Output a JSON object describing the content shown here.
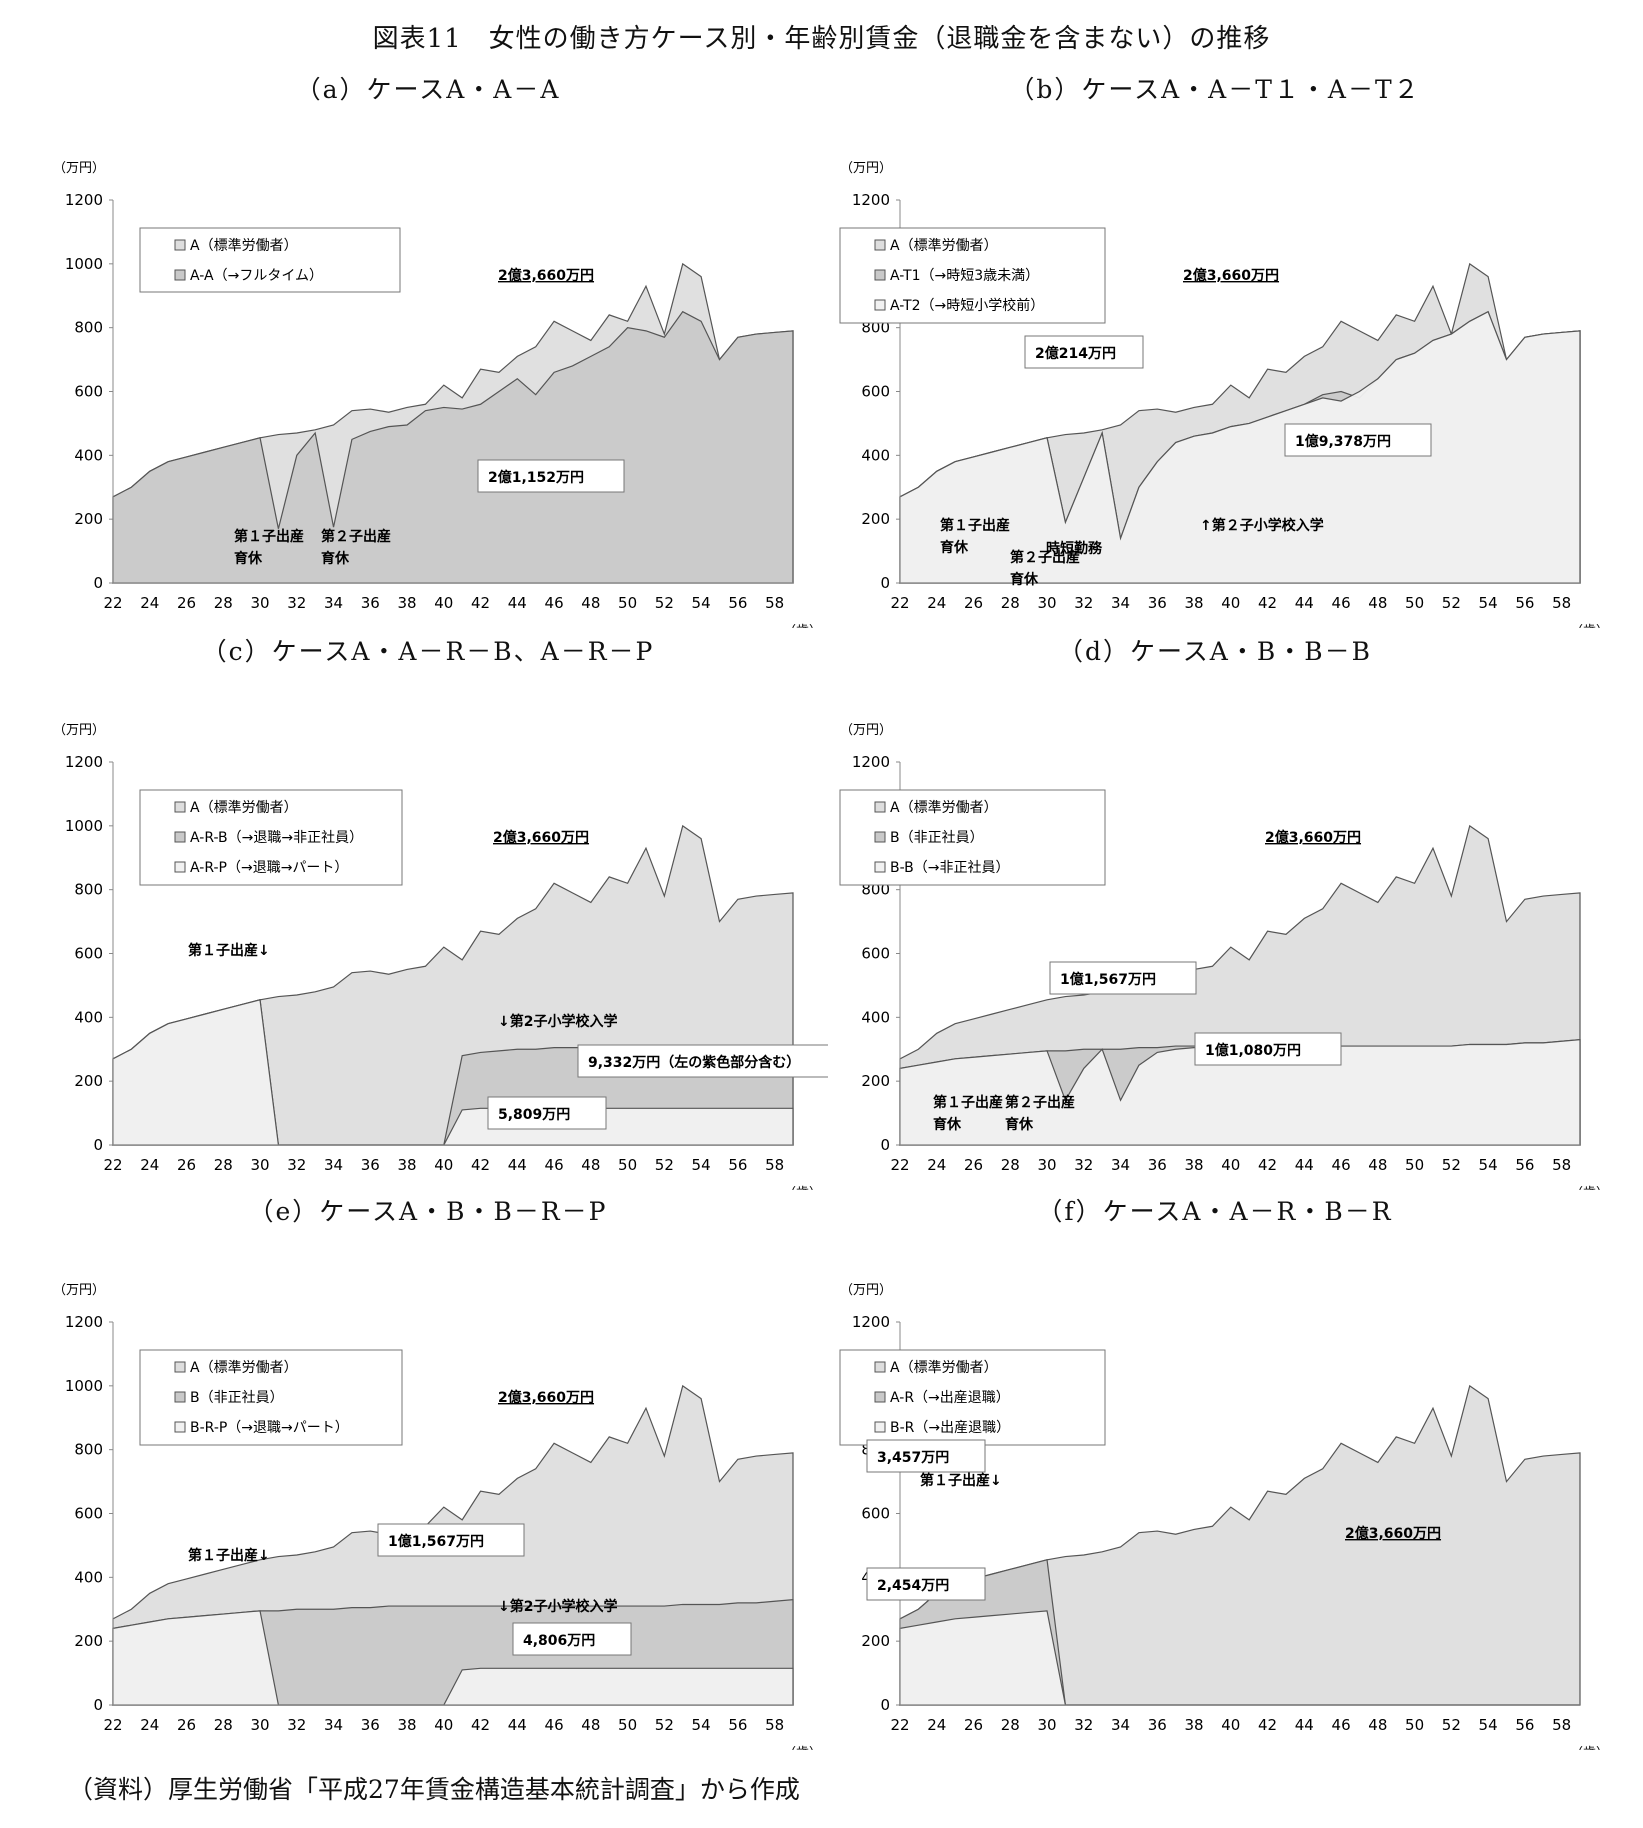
{
  "title": "図表11　女性の働き方ケース別・年齢別賃金（退職金を含まない）の推移",
  "source": "（資料）厚生労働省「平成27年賃金構造基本統計調査」から作成",
  "colors": {
    "area_light": "#f1f1f1",
    "area_mid": "#dedede",
    "area_dark": "#c9c9c9",
    "line": "#555555",
    "frame": "#777777"
  },
  "chart_data": [
    {
      "id": "a",
      "type": "area",
      "title": "（a）ケースA・A－A",
      "unit_label": "（万円）",
      "x_unit_label": "（歳）",
      "x": [
        22,
        23,
        24,
        25,
        26,
        27,
        28,
        29,
        30,
        31,
        32,
        33,
        34,
        35,
        36,
        37,
        38,
        39,
        40,
        41,
        42,
        43,
        44,
        45,
        46,
        47,
        48,
        49,
        50,
        51,
        52,
        53,
        54,
        55,
        56,
        57,
        58,
        59
      ],
      "ylim": [
        0,
        1200
      ],
      "yticks": [
        0,
        200,
        400,
        600,
        800,
        1000,
        1200
      ],
      "xticks": [
        22,
        24,
        26,
        28,
        30,
        32,
        34,
        36,
        38,
        40,
        42,
        44,
        46,
        48,
        50,
        52,
        54,
        56,
        58
      ],
      "series": [
        {
          "name": "A（標準労働者）",
          "values": [
            270,
            300,
            350,
            380,
            395,
            410,
            425,
            440,
            455,
            465,
            470,
            480,
            495,
            540,
            545,
            535,
            550,
            560,
            620,
            580,
            670,
            660,
            710,
            740,
            820,
            790,
            760,
            840,
            820,
            930,
            780,
            1000,
            960,
            700,
            770,
            780,
            785,
            790
          ]
        },
        {
          "name": "A-A（→フルタイム）",
          "values": [
            270,
            300,
            350,
            380,
            395,
            410,
            425,
            440,
            455,
            170,
            400,
            470,
            175,
            450,
            475,
            490,
            495,
            540,
            550,
            545,
            560,
            600,
            640,
            590,
            660,
            680,
            710,
            740,
            800,
            790,
            770,
            850,
            820,
            700,
            770,
            780,
            785,
            790
          ]
        }
      ],
      "annotations": [
        "2億3,660万円",
        "2億1,152万円",
        "第１子出産",
        "育休",
        "第２子出産",
        "育休"
      ]
    },
    {
      "id": "b",
      "type": "area",
      "title": "（b）ケースA・A－T１・A－T２",
      "unit_label": "（万円）",
      "x_unit_label": "（歳）",
      "x": [
        22,
        23,
        24,
        25,
        26,
        27,
        28,
        29,
        30,
        31,
        32,
        33,
        34,
        35,
        36,
        37,
        38,
        39,
        40,
        41,
        42,
        43,
        44,
        45,
        46,
        47,
        48,
        49,
        50,
        51,
        52,
        53,
        54,
        55,
        56,
        57,
        58,
        59
      ],
      "ylim": [
        0,
        1200
      ],
      "yticks": [
        0,
        200,
        400,
        600,
        800,
        1000,
        1200
      ],
      "xticks": [
        22,
        24,
        26,
        28,
        30,
        32,
        34,
        36,
        38,
        40,
        42,
        44,
        46,
        48,
        50,
        52,
        54,
        56,
        58
      ],
      "series": [
        {
          "name": "A（標準労働者）",
          "values": [
            270,
            300,
            350,
            380,
            395,
            410,
            425,
            440,
            455,
            465,
            470,
            480,
            495,
            540,
            545,
            535,
            550,
            560,
            620,
            580,
            670,
            660,
            710,
            740,
            820,
            790,
            760,
            840,
            820,
            930,
            780,
            1000,
            960,
            700,
            770,
            780,
            785,
            790
          ]
        },
        {
          "name": "A-T1（→時短3歳未満）",
          "values": [
            270,
            300,
            350,
            380,
            395,
            410,
            425,
            440,
            455,
            190,
            330,
            470,
            140,
            300,
            380,
            440,
            460,
            470,
            490,
            500,
            520,
            540,
            560,
            590,
            600,
            580,
            640,
            700,
            720,
            760,
            780,
            820,
            850,
            700,
            770,
            780,
            785,
            790
          ]
        },
        {
          "name": "A-T2（→時短小学校前）",
          "values": [
            270,
            300,
            350,
            380,
            395,
            410,
            425,
            440,
            455,
            190,
            330,
            470,
            140,
            300,
            380,
            440,
            460,
            470,
            490,
            500,
            520,
            540,
            560,
            580,
            570,
            600,
            640,
            700,
            720,
            760,
            780,
            820,
            850,
            700,
            770,
            780,
            785,
            790
          ]
        }
      ],
      "annotations": [
        "2億3,660万円",
        "2億214万円",
        "1億9,378万円",
        "時短勤務",
        "↑第２子小学校入学",
        "第１子出産",
        "育休",
        "第２子出産",
        "育休"
      ]
    },
    {
      "id": "c",
      "type": "area",
      "title": "（c）ケースA・A－R－B、A－R－P",
      "unit_label": "（万円）",
      "x_unit_label": "（歳）",
      "x": [
        22,
        23,
        24,
        25,
        26,
        27,
        28,
        29,
        30,
        31,
        32,
        33,
        34,
        35,
        36,
        37,
        38,
        39,
        40,
        41,
        42,
        43,
        44,
        45,
        46,
        47,
        48,
        49,
        50,
        51,
        52,
        53,
        54,
        55,
        56,
        57,
        58,
        59
      ],
      "ylim": [
        0,
        1200
      ],
      "yticks": [
        0,
        200,
        400,
        600,
        800,
        1000,
        1200
      ],
      "xticks": [
        22,
        24,
        26,
        28,
        30,
        32,
        34,
        36,
        38,
        40,
        42,
        44,
        46,
        48,
        50,
        52,
        54,
        56,
        58
      ],
      "series": [
        {
          "name": "A（標準労働者）",
          "values": [
            270,
            300,
            350,
            380,
            395,
            410,
            425,
            440,
            455,
            465,
            470,
            480,
            495,
            540,
            545,
            535,
            550,
            560,
            620,
            580,
            670,
            660,
            710,
            740,
            820,
            790,
            760,
            840,
            820,
            930,
            780,
            1000,
            960,
            700,
            770,
            780,
            785,
            790
          ]
        },
        {
          "name": "A-R-B（→退職→非正社員）",
          "values": [
            270,
            300,
            350,
            380,
            395,
            410,
            425,
            440,
            455,
            0,
            0,
            0,
            0,
            0,
            0,
            0,
            0,
            0,
            0,
            280,
            290,
            295,
            300,
            300,
            305,
            305,
            305,
            305,
            305,
            305,
            305,
            305,
            305,
            305,
            305,
            305,
            305,
            305
          ]
        },
        {
          "name": "A-R-P（→退職→パート）",
          "values": [
            270,
            300,
            350,
            380,
            395,
            410,
            425,
            440,
            455,
            0,
            0,
            0,
            0,
            0,
            0,
            0,
            0,
            0,
            0,
            110,
            115,
            115,
            115,
            115,
            115,
            115,
            115,
            115,
            115,
            115,
            115,
            115,
            115,
            115,
            115,
            115,
            115,
            115
          ]
        }
      ],
      "annotations": [
        "2億3,660万円",
        "第１子出産↓",
        "↓第2子小学校入学",
        "9,332万円（左の紫色部分含む）",
        "5,809万円"
      ]
    },
    {
      "id": "d",
      "type": "area",
      "title": "（d）ケースA・B・B－B",
      "unit_label": "（万円）",
      "x_unit_label": "（歳）",
      "x": [
        22,
        23,
        24,
        25,
        26,
        27,
        28,
        29,
        30,
        31,
        32,
        33,
        34,
        35,
        36,
        37,
        38,
        39,
        40,
        41,
        42,
        43,
        44,
        45,
        46,
        47,
        48,
        49,
        50,
        51,
        52,
        53,
        54,
        55,
        56,
        57,
        58,
        59
      ],
      "ylim": [
        0,
        1200
      ],
      "yticks": [
        0,
        200,
        400,
        600,
        800,
        1000,
        1200
      ],
      "xticks": [
        22,
        24,
        26,
        28,
        30,
        32,
        34,
        36,
        38,
        40,
        42,
        44,
        46,
        48,
        50,
        52,
        54,
        56,
        58
      ],
      "series": [
        {
          "name": "A（標準労働者）",
          "values": [
            270,
            300,
            350,
            380,
            395,
            410,
            425,
            440,
            455,
            465,
            470,
            480,
            495,
            540,
            545,
            535,
            550,
            560,
            620,
            580,
            670,
            660,
            710,
            740,
            820,
            790,
            760,
            840,
            820,
            930,
            780,
            1000,
            960,
            700,
            770,
            780,
            785,
            790
          ]
        },
        {
          "name": "B（非正社員）",
          "values": [
            240,
            250,
            260,
            270,
            275,
            280,
            285,
            290,
            295,
            295,
            300,
            300,
            300,
            305,
            305,
            310,
            310,
            310,
            310,
            310,
            310,
            310,
            310,
            310,
            310,
            310,
            310,
            310,
            310,
            310,
            310,
            315,
            315,
            315,
            320,
            320,
            325,
            330
          ]
        },
        {
          "name": "B-B（→非正社員）",
          "values": [
            240,
            250,
            260,
            270,
            275,
            280,
            285,
            290,
            295,
            140,
            240,
            300,
            140,
            250,
            290,
            300,
            305,
            310,
            310,
            310,
            310,
            310,
            310,
            310,
            310,
            310,
            310,
            310,
            310,
            310,
            310,
            315,
            315,
            315,
            320,
            320,
            325,
            330
          ]
        }
      ],
      "annotations": [
        "2億3,660万円",
        "1億1,567万円",
        "1億1,080万円",
        "第１子出産",
        "育休",
        "第２子出産",
        "育休"
      ]
    },
    {
      "id": "e",
      "type": "area",
      "title": "（e）ケースA・B・B－R－P",
      "unit_label": "（万円）",
      "x_unit_label": "（歳）",
      "x": [
        22,
        23,
        24,
        25,
        26,
        27,
        28,
        29,
        30,
        31,
        32,
        33,
        34,
        35,
        36,
        37,
        38,
        39,
        40,
        41,
        42,
        43,
        44,
        45,
        46,
        47,
        48,
        49,
        50,
        51,
        52,
        53,
        54,
        55,
        56,
        57,
        58,
        59
      ],
      "ylim": [
        0,
        1200
      ],
      "yticks": [
        0,
        200,
        400,
        600,
        800,
        1000,
        1200
      ],
      "xticks": [
        22,
        24,
        26,
        28,
        30,
        32,
        34,
        36,
        38,
        40,
        42,
        44,
        46,
        48,
        50,
        52,
        54,
        56,
        58
      ],
      "series": [
        {
          "name": "A（標準労働者）",
          "values": [
            270,
            300,
            350,
            380,
            395,
            410,
            425,
            440,
            455,
            465,
            470,
            480,
            495,
            540,
            545,
            535,
            550,
            560,
            620,
            580,
            670,
            660,
            710,
            740,
            820,
            790,
            760,
            840,
            820,
            930,
            780,
            1000,
            960,
            700,
            770,
            780,
            785,
            790
          ]
        },
        {
          "name": "B（非正社員）",
          "values": [
            240,
            250,
            260,
            270,
            275,
            280,
            285,
            290,
            295,
            295,
            300,
            300,
            300,
            305,
            305,
            310,
            310,
            310,
            310,
            310,
            310,
            310,
            310,
            310,
            310,
            310,
            310,
            310,
            310,
            310,
            310,
            315,
            315,
            315,
            320,
            320,
            325,
            330
          ]
        },
        {
          "name": "B-R-P（→退職→パート）",
          "values": [
            240,
            250,
            260,
            270,
            275,
            280,
            285,
            290,
            295,
            0,
            0,
            0,
            0,
            0,
            0,
            0,
            0,
            0,
            0,
            110,
            115,
            115,
            115,
            115,
            115,
            115,
            115,
            115,
            115,
            115,
            115,
            115,
            115,
            115,
            115,
            115,
            115,
            115
          ]
        }
      ],
      "annotations": [
        "2億3,660万円",
        "第１子出産↓",
        "1億1,567万円",
        "↓第2子小学校入学",
        "4,806万円"
      ]
    },
    {
      "id": "f",
      "type": "area",
      "title": "（f）ケースA・A－R・B－R",
      "unit_label": "（万円）",
      "x_unit_label": "（歳）",
      "x": [
        22,
        23,
        24,
        25,
        26,
        27,
        28,
        29,
        30,
        31,
        32,
        33,
        34,
        35,
        36,
        37,
        38,
        39,
        40,
        41,
        42,
        43,
        44,
        45,
        46,
        47,
        48,
        49,
        50,
        51,
        52,
        53,
        54,
        55,
        56,
        57,
        58,
        59
      ],
      "ylim": [
        0,
        1200
      ],
      "yticks": [
        0,
        200,
        400,
        600,
        800,
        1000,
        1200
      ],
      "xticks": [
        22,
        24,
        26,
        28,
        30,
        32,
        34,
        36,
        38,
        40,
        42,
        44,
        46,
        48,
        50,
        52,
        54,
        56,
        58
      ],
      "series": [
        {
          "name": "A（標準労働者）",
          "values": [
            270,
            300,
            350,
            380,
            395,
            410,
            425,
            440,
            455,
            465,
            470,
            480,
            495,
            540,
            545,
            535,
            550,
            560,
            620,
            580,
            670,
            660,
            710,
            740,
            820,
            790,
            760,
            840,
            820,
            930,
            780,
            1000,
            960,
            700,
            770,
            780,
            785,
            790
          ]
        },
        {
          "name": "A-R（→出産退職）",
          "values": [
            270,
            300,
            350,
            380,
            395,
            410,
            425,
            440,
            455,
            0,
            0,
            0,
            0,
            0,
            0,
            0,
            0,
            0,
            0,
            0,
            0,
            0,
            0,
            0,
            0,
            0,
            0,
            0,
            0,
            0,
            0,
            0,
            0,
            0,
            0,
            0,
            0,
            0
          ]
        },
        {
          "name": "B-R（→出産退職）",
          "values": [
            240,
            250,
            260,
            270,
            275,
            280,
            285,
            290,
            295,
            0,
            0,
            0,
            0,
            0,
            0,
            0,
            0,
            0,
            0,
            0,
            0,
            0,
            0,
            0,
            0,
            0,
            0,
            0,
            0,
            0,
            0,
            0,
            0,
            0,
            0,
            0,
            0,
            0
          ]
        }
      ],
      "annotations": [
        "3,457万円",
        "第１子出産↓",
        "2,454万円",
        "2億3,660万円"
      ]
    }
  ]
}
